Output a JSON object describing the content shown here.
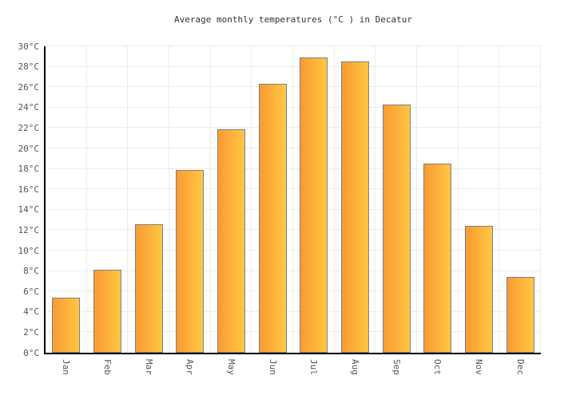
{
  "chart_data": {
    "type": "bar",
    "title": "Average monthly temperatures (°C ) in Decatur",
    "categories": [
      "Jan",
      "Feb",
      "Mar",
      "Apr",
      "May",
      "Jun",
      "Jul",
      "Aug",
      "Sep",
      "Oct",
      "Nov",
      "Dec"
    ],
    "values": [
      5.4,
      8.1,
      12.6,
      17.9,
      21.9,
      26.3,
      28.9,
      28.5,
      24.3,
      18.5,
      12.4,
      7.4
    ],
    "xlabel": "",
    "ylabel": "",
    "ylim": [
      0,
      30
    ],
    "ytick_step": 2,
    "ytick_labels": [
      "0°C",
      "2°C",
      "4°C",
      "6°C",
      "8°C",
      "10°C",
      "12°C",
      "14°C",
      "16°C",
      "18°C",
      "20°C",
      "22°C",
      "24°C",
      "26°C",
      "28°C",
      "30°C"
    ],
    "grid": "both",
    "legend": "none",
    "colors": {
      "bar_gradient_left": "#fa9a33",
      "bar_gradient_right": "#ffc742",
      "bar_border": "#7e8086",
      "grid_line": "#ececec",
      "axis_line": "#000000",
      "tick_label": "#555555",
      "title_text": "#333333",
      "background": "#ffffff"
    }
  }
}
